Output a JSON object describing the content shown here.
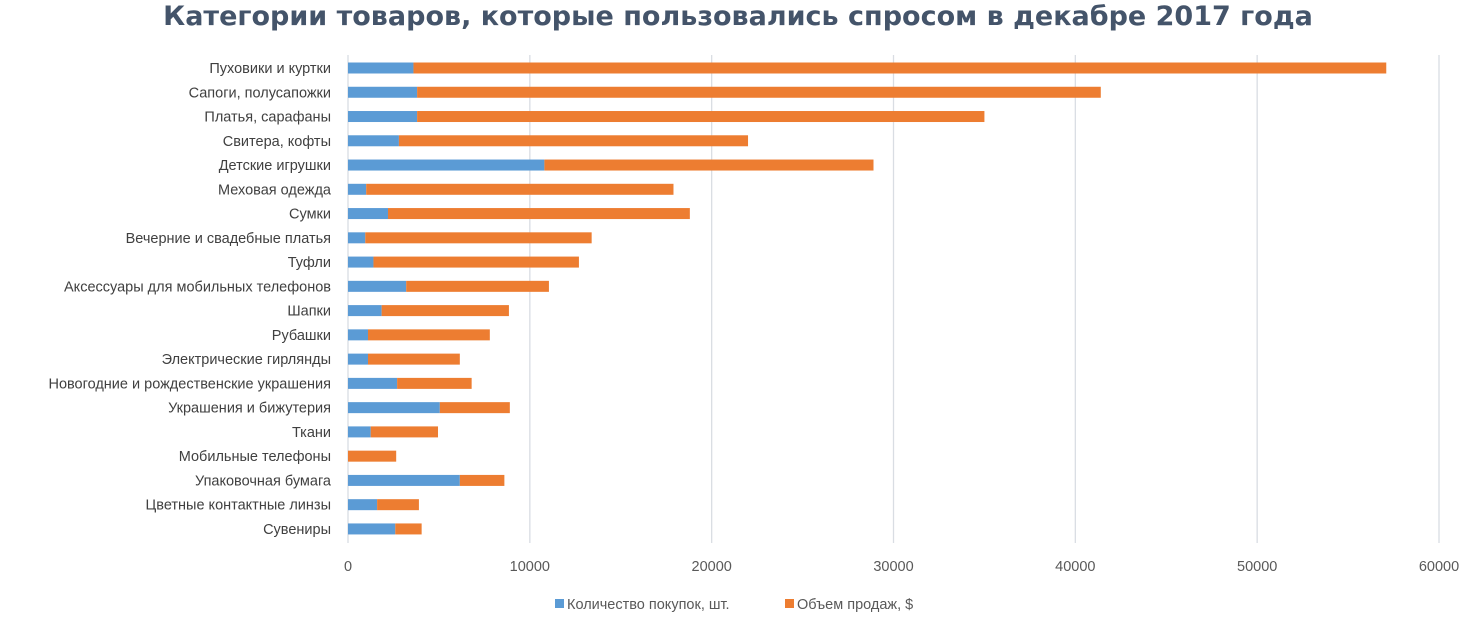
{
  "chart_data": {
    "type": "bar",
    "orientation": "horizontal",
    "stacked": true,
    "title": "Категории товаров, которые пользовались спросом в декабре 2017 года",
    "categories": [
      "Пуховики и куртки",
      "Сапоги, полусапожки",
      "Платья, сарафаны",
      "Свитера, кофты",
      "Детские игрушки",
      "Меховая одежда",
      "Сумки",
      "Вечерние и свадебные платья",
      "Туфли",
      "Аксессуары для мобильных телефонов",
      "Шапки",
      "Рубашки",
      "Электрические гирлянды",
      "Новогодние и рождественские украшения",
      "Украшения и бижутерия",
      "Ткани",
      "Мобильные телефоны",
      "Упаковочная бумага",
      "Цветные контактные линзы",
      "Сувениры"
    ],
    "series": [
      {
        "name": "Количество покупок, шт.",
        "color": "#5b9bd5",
        "values": [
          3600,
          3800,
          3800,
          2800,
          10800,
          1000,
          2200,
          950,
          1400,
          3200,
          1850,
          1100,
          1100,
          2700,
          5050,
          1250,
          0,
          6150,
          1600,
          2600
        ]
      },
      {
        "name": "Объем продаж, $",
        "color": "#ed7d31",
        "values": [
          53500,
          37600,
          31200,
          19200,
          18100,
          16900,
          16600,
          12450,
          11300,
          7850,
          7000,
          6700,
          5050,
          4100,
          3850,
          3700,
          2650,
          2450,
          2300,
          1450
        ]
      }
    ],
    "xlim": [
      0,
      60000
    ],
    "xticks": [
      "0",
      "10000",
      "20000",
      "30000",
      "40000",
      "50000",
      "60000"
    ],
    "grid": true,
    "legend": "bottom"
  }
}
